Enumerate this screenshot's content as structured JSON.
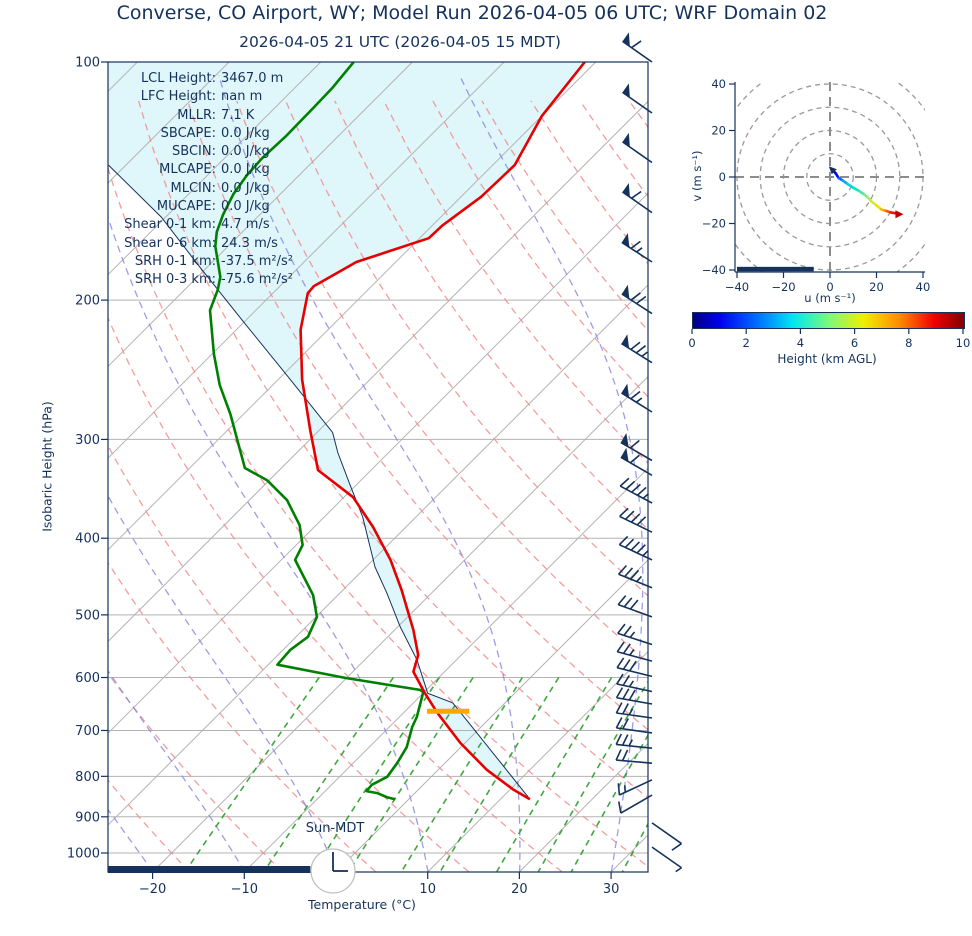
{
  "header": {
    "title": "Converse, CO Airport, WY; Model Run 2026-04-05 06 UTC; WRF Domain 02",
    "subtitle": "2026-04-05 21 UTC  (2026-04-05 15 MDT)"
  },
  "chart_data": {
    "type": "skewt-logp-sounding",
    "skewt": {
      "xlabel": "Temperature (°C)",
      "ylabel": "Isobaric Height (hPa)",
      "sun_label": "Sun-MDT",
      "x_ticks": [
        -20,
        -10,
        0,
        10,
        20,
        30
      ],
      "y_ticks": [
        100,
        200,
        300,
        400,
        500,
        600,
        700,
        800,
        900,
        1000
      ],
      "x_range": [
        -25,
        34
      ],
      "p_range": [
        100,
        1057
      ],
      "stats": [
        {
          "label": "LCL Height:",
          "value": "3467.0 m"
        },
        {
          "label": "LFC Height:",
          "value": "nan m"
        },
        {
          "label": "MLLR:",
          "value": "7.1 K"
        },
        {
          "label": "SBCAPE:",
          "value": "0.0 J/kg"
        },
        {
          "label": "SBCIN:",
          "value": "0.0 J/kg"
        },
        {
          "label": "MLCAPE:",
          "value": "0.0 J/kg"
        },
        {
          "label": "MLCIN:",
          "value": "0.0 J/kg"
        },
        {
          "label": "MUCAPE:",
          "value": "0.0 J/kg"
        },
        {
          "label": "Shear 0-1 km:",
          "value": "4.7 m/s"
        },
        {
          "label": "Shear 0-6 km:",
          "value": "24.3 m/s"
        },
        {
          "label": "SRH 0-1 km:",
          "value": "-37.5 m²/s²"
        },
        {
          "label": "SRH 0-3 km:",
          "value": "-75.6 m²/s²"
        }
      ],
      "temperature_profile": [
        [
          100,
          -61.2
        ],
        [
          117,
          -60.0
        ],
        [
          135,
          -57.6
        ],
        [
          148,
          -57.8
        ],
        [
          161,
          -58.9
        ],
        [
          167,
          -59.0
        ],
        [
          179,
          -64.3
        ],
        [
          192,
          -66.3
        ],
        [
          196,
          -66.2
        ],
        [
          218,
          -63.0
        ],
        [
          252,
          -57.4
        ],
        [
          292,
          -51.0
        ],
        [
          328,
          -45.8
        ],
        [
          355,
          -39.0
        ],
        [
          387,
          -33.6
        ],
        [
          426,
          -28.1
        ],
        [
          465,
          -23.6
        ],
        [
          522,
          -18.0
        ],
        [
          562,
          -14.7
        ],
        [
          590,
          -13.4
        ],
        [
          628,
          -9.8
        ],
        [
          665,
          -6.3
        ],
        [
          726,
          -0.5
        ],
        [
          785,
          5.3
        ],
        [
          832,
          10.4
        ],
        [
          855,
          13.2
        ]
      ],
      "dewpoint_profile": [
        [
          100,
          -86.4
        ],
        [
          108,
          -85.9
        ],
        [
          114,
          -85.8
        ],
        [
          124,
          -85.7
        ],
        [
          132,
          -85.9
        ],
        [
          139,
          -85.7
        ],
        [
          147,
          -85.1
        ],
        [
          156,
          -84.0
        ],
        [
          164,
          -82.8
        ],
        [
          171,
          -81.4
        ],
        [
          179,
          -79.4
        ],
        [
          187,
          -77.5
        ],
        [
          194,
          -76.4
        ],
        [
          206,
          -75.0
        ],
        [
          234,
          -69.8
        ],
        [
          256,
          -65.8
        ],
        [
          279,
          -61.4
        ],
        [
          308,
          -56.7
        ],
        [
          326,
          -54.0
        ],
        [
          338,
          -50.2
        ],
        [
          358,
          -45.9
        ],
        [
          385,
          -41.8
        ],
        [
          408,
          -39.3
        ],
        [
          426,
          -38.5
        ],
        [
          472,
          -32.7
        ],
        [
          503,
          -29.9
        ],
        [
          533,
          -28.7
        ],
        [
          554,
          -29.2
        ],
        [
          578,
          -29.0
        ],
        [
          601,
          -20.0
        ],
        [
          622,
          -10.7
        ],
        [
          626,
          -10.1
        ],
        [
          673,
          -8.1
        ],
        [
          693,
          -7.5
        ],
        [
          735,
          -5.9
        ],
        [
          770,
          -5.2
        ],
        [
          801,
          -4.8
        ],
        [
          820,
          -5.6
        ],
        [
          835,
          -5.5
        ],
        [
          840,
          -4.1
        ],
        [
          850,
          -2.6
        ],
        [
          855,
          -1.5
        ]
      ],
      "parcel_profile": [
        [
          135,
          -101.9
        ],
        [
          157,
          -90.5
        ],
        [
          182,
          -80.7
        ],
        [
          213,
          -70.1
        ],
        [
          249,
          -59.5
        ],
        [
          294,
          -48.3
        ],
        [
          312,
          -45.5
        ],
        [
          341,
          -40.9
        ],
        [
          376,
          -35.8
        ],
        [
          435,
          -29.0
        ],
        [
          469,
          -24.9
        ],
        [
          518,
          -19.7
        ],
        [
          570,
          -14.3
        ],
        [
          628,
          -9.5
        ],
        [
          646,
          -5.7
        ],
        [
          705,
          0.2
        ],
        [
          855,
          13.2
        ]
      ],
      "lcl_bar": {
        "pressure": 662,
        "t_from": -7.6,
        "t_to": -3.0
      },
      "surface_bar": {
        "t_from": -25,
        "t_to": -2.8
      },
      "wind_barbs": [
        [
          100,
          35,
          1,
          1,
          0
        ],
        [
          116,
          35,
          1,
          0,
          0
        ],
        [
          134,
          35,
          1,
          0,
          0
        ],
        [
          155,
          35,
          1,
          1,
          0
        ],
        [
          179,
          33,
          1,
          1,
          1
        ],
        [
          208,
          33,
          1,
          2,
          0
        ],
        [
          240,
          32,
          1,
          2,
          1
        ],
        [
          277,
          32,
          1,
          1,
          1
        ],
        [
          319,
          30,
          1,
          1,
          0
        ],
        [
          333,
          30,
          1,
          1,
          0
        ],
        [
          361,
          28,
          0,
          4,
          1
        ],
        [
          393,
          26,
          0,
          4,
          0
        ],
        [
          426,
          25,
          0,
          4,
          1
        ],
        [
          462,
          22,
          0,
          3,
          1
        ],
        [
          503,
          20,
          0,
          3,
          0
        ],
        [
          545,
          18,
          0,
          2,
          1
        ],
        [
          572,
          15,
          0,
          2,
          1
        ],
        [
          598,
          14,
          0,
          3,
          0
        ],
        [
          625,
          12,
          0,
          2,
          1
        ],
        [
          648,
          10,
          0,
          3,
          0
        ],
        [
          675,
          8,
          0,
          2,
          1
        ],
        [
          705,
          8,
          0,
          2,
          0
        ],
        [
          737,
          6,
          0,
          2,
          1
        ],
        [
          770,
          5,
          0,
          2,
          0
        ],
        [
          808,
          -25,
          0,
          1,
          1
        ],
        [
          845,
          -30,
          0,
          1,
          0
        ],
        [
          916,
          215,
          0,
          1,
          0
        ],
        [
          983,
          215,
          0,
          0,
          1
        ]
      ],
      "background": {
        "isotherms": {
          "min": -120,
          "max": 40,
          "step": 10
        },
        "dry_adiabats": {
          "min": -60,
          "max": 160,
          "step": 10
        },
        "moist_adiabats": {
          "min": -100,
          "max": 40,
          "step": 10
        },
        "mixing_ratios": [
          1,
          2,
          3,
          4,
          6,
          8,
          12,
          16,
          20,
          28,
          36
        ],
        "mixing_ratio_top_hpa": 600
      },
      "colors": {
        "temperature": "#e60000",
        "dewpoint": "#008000",
        "parcel": "#14325c",
        "dry_adiabat": "#f28c8c",
        "moist_adiabat": "#8585e0",
        "mixing_ratio": "#2a9d2a",
        "isotherm": "#b3b3b3",
        "shading": "#dff6fa",
        "lcl": "#ffa500",
        "navy": "#14325c"
      }
    },
    "hodograph": {
      "xlabel": "u (m s⁻¹)",
      "ylabel": "v (m s⁻¹)",
      "u_ticks": [
        -40,
        -20,
        0,
        20,
        40
      ],
      "v_ticks": [
        -40,
        -20,
        0,
        20,
        40
      ],
      "range": [
        -40,
        40
      ],
      "rings": [
        10,
        20,
        30,
        40,
        50
      ],
      "trace": [
        [
          1.2,
          2.9,
          "#00008b"
        ],
        [
          2.5,
          1.5,
          "#0000b0"
        ],
        [
          3.7,
          -0.4,
          "#0000ff"
        ],
        [
          5.5,
          -1.5,
          "#0060ff"
        ],
        [
          7.5,
          -3.0,
          "#00a4ff"
        ],
        [
          10.0,
          -4.6,
          "#00d4e8"
        ],
        [
          12.5,
          -6.0,
          "#00e8c8"
        ],
        [
          14.9,
          -7.6,
          "#40e8a0"
        ],
        [
          16.5,
          -9.0,
          "#80e880"
        ],
        [
          17.8,
          -10.5,
          "#b4e850"
        ],
        [
          20.0,
          -12.2,
          "#d8e830"
        ],
        [
          22.0,
          -13.9,
          "#f0e000"
        ],
        [
          23.5,
          -14.4,
          "#ffb400"
        ],
        [
          24.5,
          -14.7,
          "#ff8c00"
        ],
        [
          26.0,
          -15.2,
          "#ff5000"
        ],
        [
          28.2,
          -15.6,
          "#f01800"
        ],
        [
          29.0,
          -16.0,
          "#d00000"
        ]
      ],
      "bar": {
        "v": -39.5,
        "u_from": -40,
        "u_to": -7
      }
    },
    "colorbar": {
      "label": "Height (km AGL)",
      "min": 0,
      "max": 10,
      "ticks": [
        0,
        2,
        4,
        6,
        8,
        10
      ]
    }
  }
}
